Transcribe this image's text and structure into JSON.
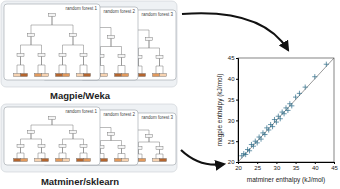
{
  "panels": [
    {
      "label": "Magpie/Weka",
      "forests": [
        "random forest 1",
        "random forest 2",
        "random forest 3"
      ]
    },
    {
      "label": "Matminer/sklearn",
      "forests": [
        "random forest 1",
        "random forest 2",
        "random forest 3"
      ]
    }
  ],
  "chart_data": {
    "type": "scatter",
    "x_label": "matminer enthalpy (kJ/mol)",
    "y_label": "magpie enthalpy (kJ/mol)",
    "x": [
      21,
      21.5,
      22,
      22.5,
      23,
      23.5,
      24,
      24.5,
      25,
      25.5,
      26,
      26.5,
      27,
      27.5,
      28,
      28.5,
      29,
      29.5,
      30,
      30.5,
      31,
      31.5,
      32,
      32.5,
      33,
      33.5,
      34,
      35,
      36,
      37.5,
      40,
      43
    ],
    "y": [
      21.5,
      22,
      21.8,
      23,
      22.7,
      24.2,
      23.8,
      25,
      24.6,
      26,
      25.5,
      27,
      26.6,
      28.2,
      27.7,
      29,
      28.5,
      30.2,
      29.6,
      31,
      30.4,
      32,
      31.6,
      33,
      32.4,
      34,
      33.5,
      35.6,
      36.5,
      38,
      40.5,
      43.5
    ],
    "xlim": [
      20,
      45
    ],
    "ylim": [
      20,
      45
    ],
    "xticks": [
      20,
      25,
      30,
      35,
      40,
      45
    ],
    "yticks": [
      20,
      25,
      30,
      35,
      40,
      45
    ],
    "marker": "cross",
    "color": "#2b6a87"
  }
}
